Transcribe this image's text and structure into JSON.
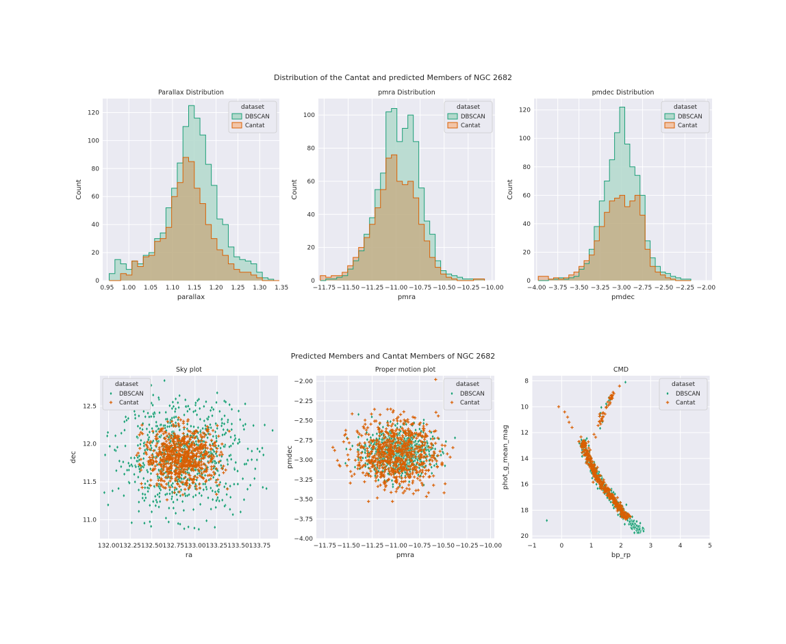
{
  "figure": {
    "top_title": "Distribution of the Cantat and predicted Members of NGC 2682",
    "bottom_title": "Predicted Members and Cantat Members of NGC 2682"
  },
  "colors": {
    "dbscan": "#1b9e77",
    "cantat": "#d95f02",
    "dbscan_fill": "#b3d9cc",
    "cantat_fill": "#f2c5a8",
    "overlap_fill": "#c8c8a8",
    "axes_bg": "#eaeaf2",
    "grid": "#ffffff"
  },
  "chart_data": [
    {
      "type": "histogram",
      "title": "Parallax Distribution",
      "xlabel": "parallax",
      "ylabel": "Count",
      "xlim": [
        0.94,
        1.345
      ],
      "ylim": [
        0,
        130
      ],
      "xticks": [
        "0.95",
        "1.00",
        "1.05",
        "1.10",
        "1.15",
        "1.20",
        "1.25",
        "1.30",
        "1.35"
      ],
      "yticks": [
        "0",
        "20",
        "40",
        "60",
        "80",
        "100",
        "120"
      ],
      "legend": {
        "title": "dataset",
        "entries": [
          "DBSCAN",
          "Cantat"
        ],
        "position": "upper-right"
      },
      "bins": [
        0.955,
        0.968,
        0.981,
        0.994,
        1.007,
        1.02,
        1.033,
        1.046,
        1.059,
        1.072,
        1.085,
        1.098,
        1.111,
        1.124,
        1.137,
        1.15,
        1.163,
        1.176,
        1.189,
        1.202,
        1.215,
        1.228,
        1.241,
        1.254,
        1.267,
        1.28,
        1.293,
        1.306,
        1.319,
        1.332,
        1.345
      ],
      "series": [
        {
          "name": "DBSCAN",
          "values": [
            5,
            15,
            12,
            8,
            14,
            12,
            18,
            20,
            30,
            34,
            52,
            66,
            84,
            110,
            125,
            116,
            104,
            83,
            68,
            44,
            40,
            24,
            17,
            15,
            14,
            12,
            6,
            2,
            1,
            0
          ]
        },
        {
          "name": "Cantat",
          "values": [
            0,
            0,
            5,
            4,
            14,
            10,
            17,
            18,
            28,
            30,
            38,
            60,
            70,
            88,
            85,
            66,
            55,
            40,
            30,
            22,
            18,
            12,
            8,
            6,
            6,
            4,
            2,
            0,
            0,
            0
          ]
        }
      ]
    },
    {
      "type": "histogram",
      "title": "pmra Distribution",
      "xlabel": "pmra",
      "ylabel": "Count",
      "xlim": [
        -11.81,
        -9.97
      ],
      "ylim": [
        0,
        110
      ],
      "xticks": [
        "−11.75",
        "−11.50",
        "−11.25",
        "−11.00",
        "−10.75",
        "−10.50",
        "−10.25",
        "−10.00"
      ],
      "yticks": [
        "0",
        "20",
        "40",
        "60",
        "80",
        "100"
      ],
      "legend": {
        "title": "dataset",
        "entries": [
          "DBSCAN",
          "Cantat"
        ],
        "position": "upper-right"
      },
      "bins": [
        -11.79,
        -11.733,
        -11.676,
        -11.619,
        -11.562,
        -11.505,
        -11.448,
        -11.391,
        -11.334,
        -11.277,
        -11.22,
        -11.163,
        -11.106,
        -11.049,
        -10.992,
        -10.935,
        -10.878,
        -10.821,
        -10.764,
        -10.707,
        -10.65,
        -10.593,
        -10.536,
        -10.479,
        -10.422,
        -10.365,
        -10.308,
        -10.251,
        -10.194,
        -10.137,
        -10.08
      ],
      "series": [
        {
          "name": "DBSCAN",
          "values": [
            0,
            1,
            1,
            2,
            3,
            7,
            12,
            18,
            28,
            38,
            55,
            65,
            102,
            104,
            84,
            92,
            100,
            84,
            56,
            36,
            28,
            12,
            6,
            4,
            3,
            2,
            1,
            1,
            1,
            1
          ]
        },
        {
          "name": "Cantat",
          "values": [
            3,
            2,
            3,
            3,
            5,
            9,
            14,
            20,
            26,
            34,
            44,
            55,
            74,
            76,
            60,
            58,
            60,
            50,
            34,
            24,
            14,
            8,
            4,
            2,
            1,
            0,
            0,
            0,
            1,
            1
          ]
        }
      ]
    },
    {
      "type": "histogram",
      "title": "pmdec Distribution",
      "xlabel": "pmdec",
      "ylabel": "Count",
      "xlim": [
        -4.03,
        -1.93
      ],
      "ylim": [
        0,
        128
      ],
      "xticks": [
        "−4.00",
        "−3.75",
        "−3.50",
        "−3.25",
        "−3.00",
        "−2.75",
        "−2.50",
        "−2.25",
        "−2.00"
      ],
      "yticks": [
        "0",
        "20",
        "40",
        "60",
        "80",
        "100",
        "120"
      ],
      "legend": {
        "title": "dataset",
        "entries": [
          "DBSCAN",
          "Cantat"
        ],
        "position": "upper-right"
      },
      "bins": [
        -3.98,
        -3.92,
        -3.86,
        -3.8,
        -3.74,
        -3.68,
        -3.62,
        -3.56,
        -3.5,
        -3.44,
        -3.38,
        -3.32,
        -3.26,
        -3.2,
        -3.14,
        -3.08,
        -3.02,
        -2.96,
        -2.9,
        -2.84,
        -2.78,
        -2.72,
        -2.66,
        -2.6,
        -2.54,
        -2.48,
        -2.42,
        -2.36,
        -2.3,
        -2.24,
        -2.18
      ],
      "series": [
        {
          "name": "DBSCAN",
          "values": [
            0,
            0,
            1,
            1,
            2,
            1,
            2,
            3,
            8,
            12,
            22,
            38,
            56,
            70,
            85,
            104,
            122,
            96,
            80,
            74,
            60,
            28,
            16,
            10,
            6,
            5,
            3,
            2,
            1,
            1
          ]
        },
        {
          "name": "Cantat",
          "values": [
            3,
            3,
            1,
            2,
            1,
            2,
            4,
            6,
            10,
            14,
            18,
            28,
            38,
            48,
            56,
            58,
            60,
            52,
            56,
            60,
            46,
            22,
            10,
            6,
            4,
            2,
            1,
            0,
            0,
            0
          ]
        }
      ]
    },
    {
      "type": "scatter",
      "title": "Sky plot",
      "xlabel": "ra",
      "ylabel": "dec",
      "xlim": [
        131.9,
        133.96
      ],
      "ylim": [
        10.75,
        12.9
      ],
      "xticks": [
        "132.00",
        "132.25",
        "132.50",
        "132.75",
        "133.00",
        "133.25",
        "133.50",
        "133.75"
      ],
      "yticks": [
        "11.0",
        "11.5",
        "12.0",
        "12.5"
      ],
      "legend": {
        "title": "dataset",
        "entries": [
          "DBSCAN",
          "Cantat"
        ],
        "position": "upper-left"
      },
      "series": [
        {
          "name": "DBSCAN",
          "marker": "diamond",
          "center": [
            132.85,
            11.83
          ],
          "spread": [
            0.36,
            0.36
          ],
          "n": 820,
          "extent": [
            131.95,
            133.9,
            10.8,
            12.85
          ]
        },
        {
          "name": "Cantat",
          "marker": "plus",
          "center": [
            132.85,
            11.82
          ],
          "spread": [
            0.22,
            0.2
          ],
          "n": 700,
          "extent": [
            132.3,
            133.45,
            11.25,
            12.35
          ]
        }
      ]
    },
    {
      "type": "scatter",
      "title": "Proper motion plot",
      "xlabel": "pmra",
      "ylabel": "pmdec",
      "xlim": [
        -11.84,
        -9.96
      ],
      "ylim": [
        -4.0,
        -1.93
      ],
      "xticks": [
        "−11.75",
        "−11.50",
        "−11.25",
        "−11.00",
        "−10.75",
        "−10.50",
        "−10.25",
        "−10.00"
      ],
      "yticks": [
        "−4.00",
        "−3.75",
        "−3.50",
        "−3.25",
        "−3.00",
        "−2.75",
        "−2.50",
        "−2.25",
        "−2.00"
      ],
      "legend": {
        "title": "dataset",
        "entries": [
          "DBSCAN",
          "Cantat"
        ],
        "position": "upper-right"
      },
      "series": [
        {
          "name": "DBSCAN",
          "marker": "diamond",
          "center": [
            -10.97,
            -2.9
          ],
          "spread": [
            0.18,
            0.15
          ],
          "n": 800,
          "extent": [
            -11.6,
            -10.1,
            -3.85,
            -2.35
          ]
        },
        {
          "name": "Cantat",
          "marker": "plus",
          "center": [
            -11.0,
            -2.92
          ],
          "spread": [
            0.22,
            0.22
          ],
          "n": 700,
          "extent": [
            -11.8,
            -10.05,
            -3.95,
            -1.97
          ]
        }
      ]
    },
    {
      "type": "scatter",
      "title": "CMD",
      "xlabel": "bp_rp",
      "ylabel": "phot_g_mean_mag",
      "xlim": [
        -1,
        5
      ],
      "ylim": [
        20.2,
        7.6
      ],
      "xticks": [
        "−1",
        "0",
        "1",
        "2",
        "3",
        "4",
        "5"
      ],
      "yticks": [
        "8",
        "10",
        "12",
        "14",
        "16",
        "18",
        "20"
      ],
      "legend": {
        "title": "dataset",
        "entries": [
          "DBSCAN",
          "Cantat"
        ],
        "position": "upper-right"
      },
      "main_sequence": [
        [
          0.7,
          12.6
        ],
        [
          0.8,
          13.5
        ],
        [
          1.0,
          14.5
        ],
        [
          1.2,
          15.5
        ],
        [
          1.45,
          16.3
        ],
        [
          1.7,
          17.0
        ],
        [
          1.95,
          17.8
        ],
        [
          2.2,
          18.6
        ],
        [
          2.45,
          19.2
        ],
        [
          2.7,
          19.6
        ]
      ],
      "giant_branch": [
        [
          1.1,
          12.2
        ],
        [
          1.3,
          11.2
        ],
        [
          1.4,
          10.4
        ],
        [
          1.55,
          9.8
        ],
        [
          1.65,
          9.3
        ],
        [
          1.75,
          8.8
        ]
      ],
      "blue_stragglers": [
        [
          -0.1,
          10.0
        ],
        [
          0.1,
          10.4
        ],
        [
          0.2,
          10.8
        ],
        [
          0.25,
          11.2
        ],
        [
          0.35,
          11.6
        ]
      ],
      "outliers": [
        [
          -0.5,
          18.8
        ],
        [
          2.15,
          8.1
        ],
        [
          1.95,
          8.4
        ]
      ]
    }
  ]
}
